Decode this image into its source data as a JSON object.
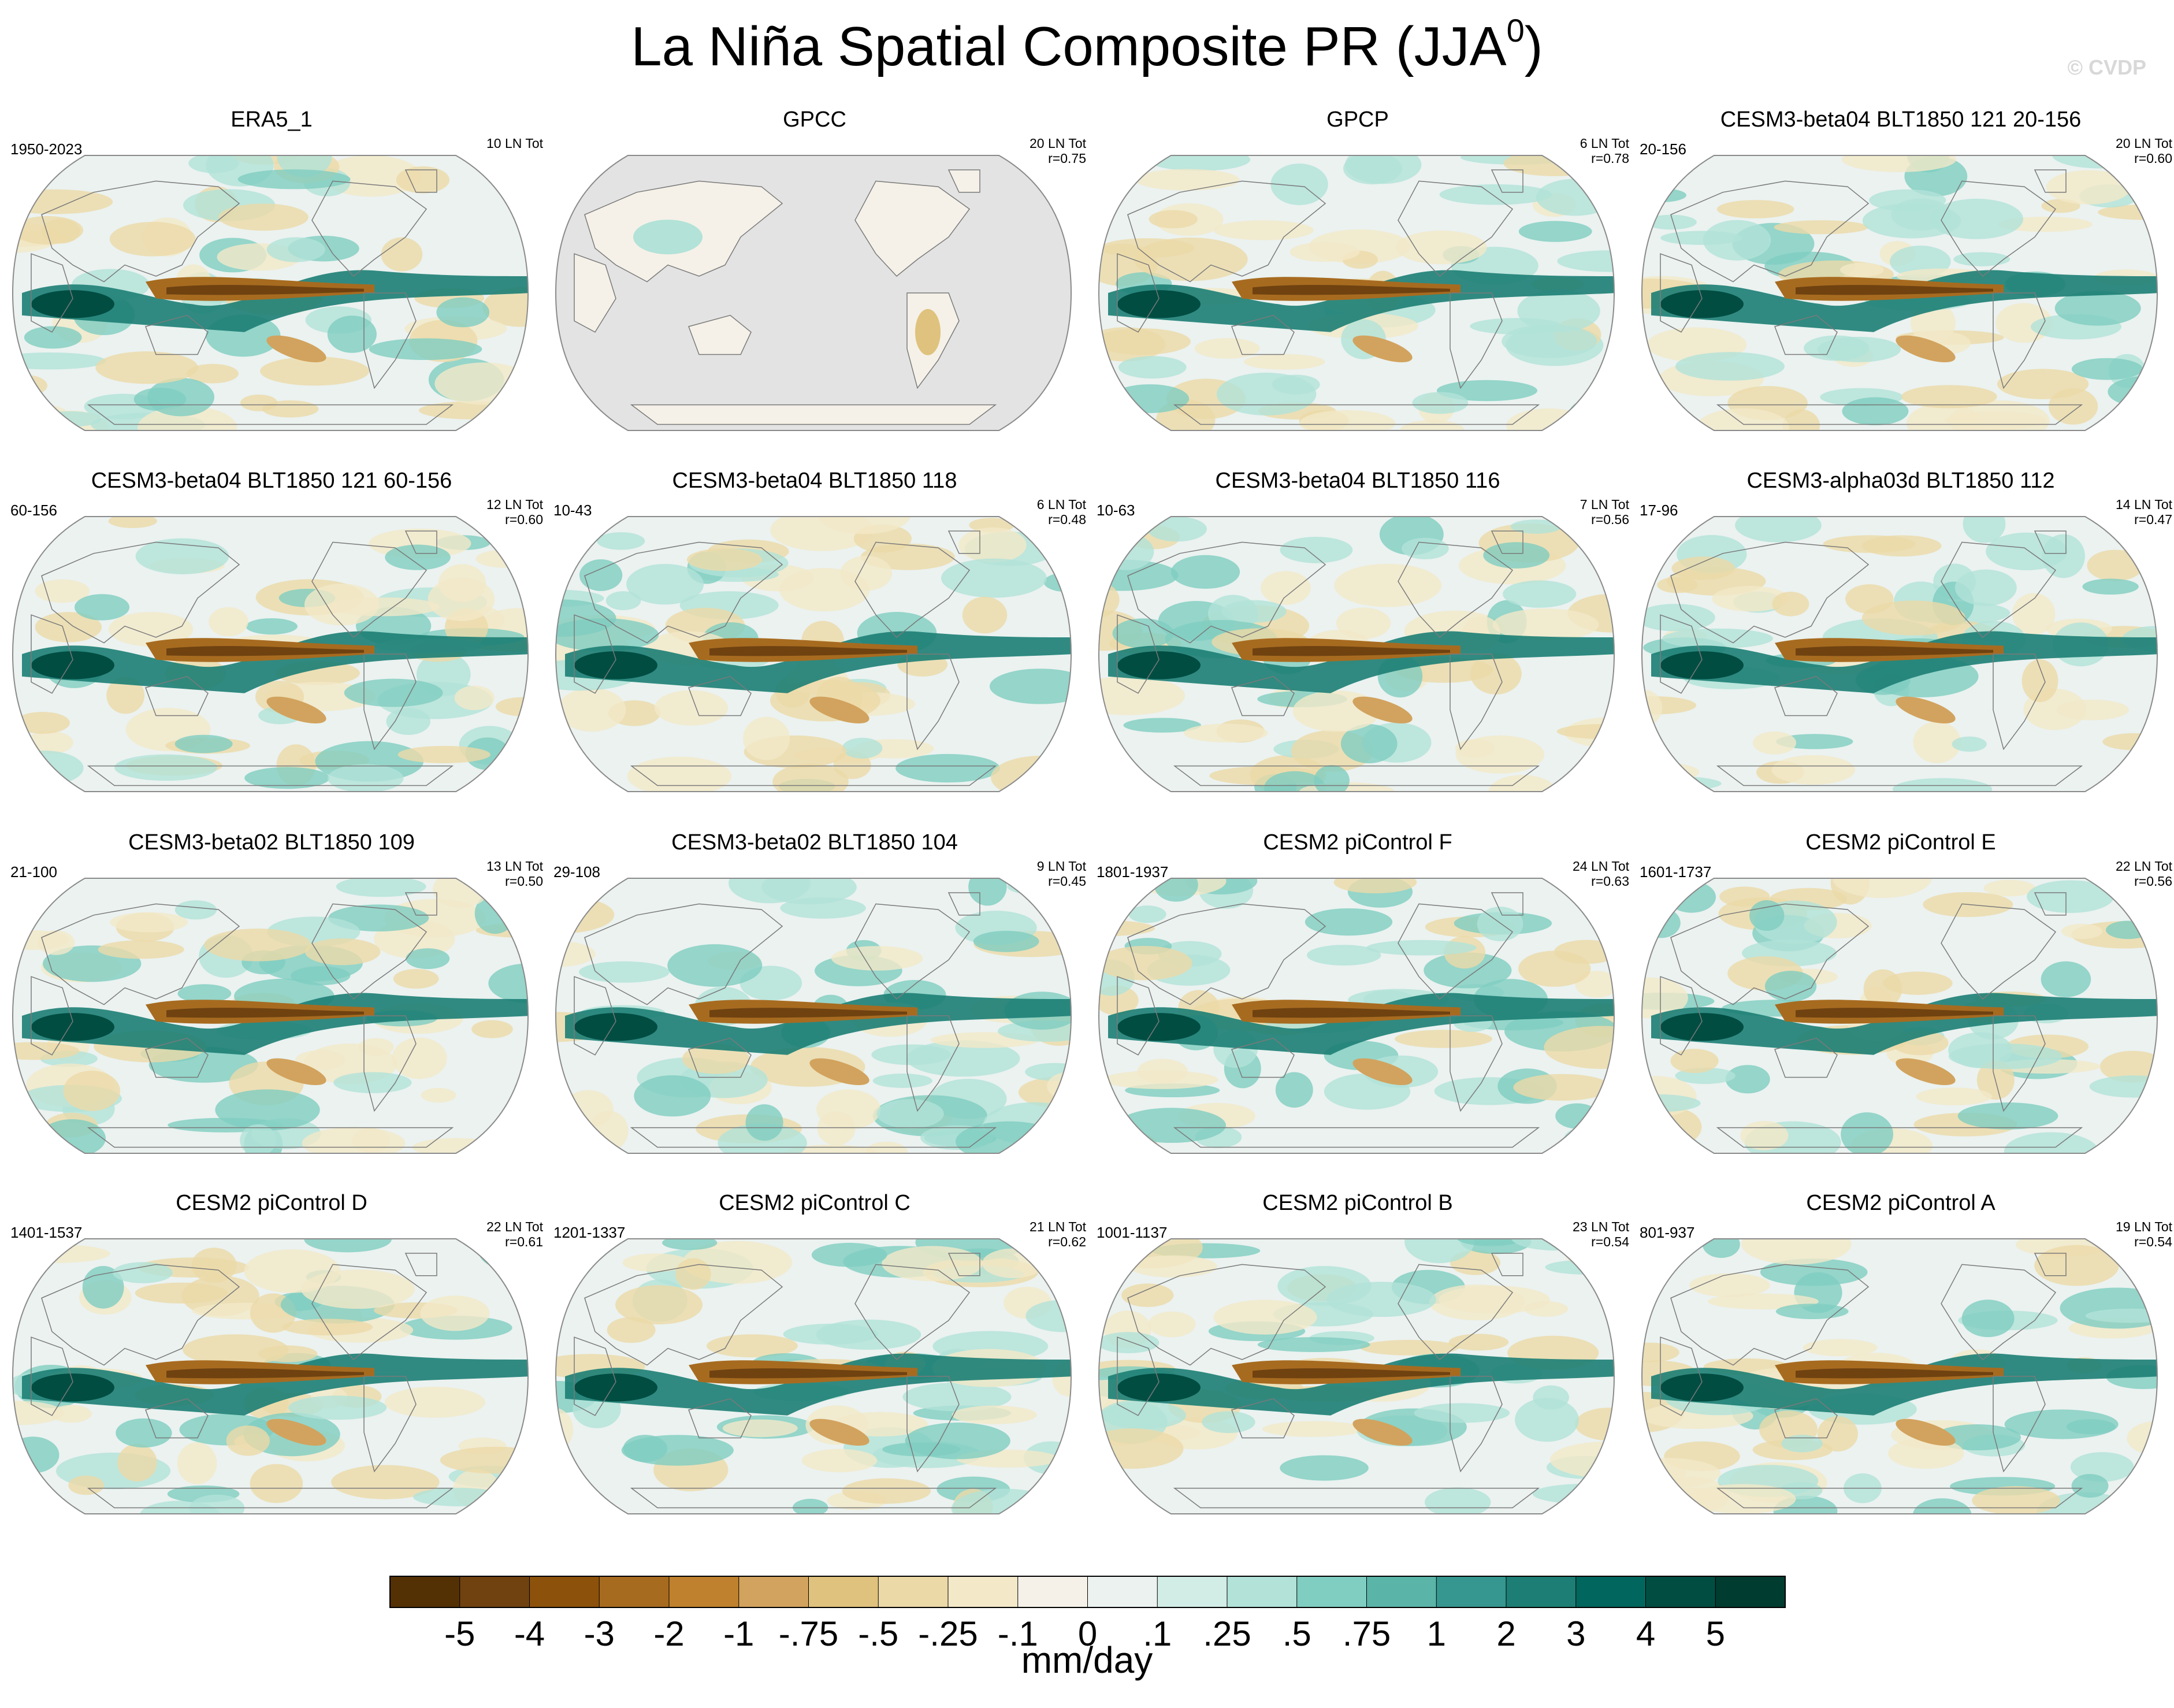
{
  "title": "La Niña Spatial Composite PR (JJA",
  "title_superscript": "0",
  "title_close": ")",
  "watermark": "© CVDP",
  "chart_data": {
    "type": "heatmap",
    "variable": "PR",
    "season": "JJA",
    "units": "mm/day",
    "projection": "global map (Robinson-like), Pacific-centered",
    "panels": [
      {
        "title": "ERA5_1",
        "years": "1950-2023",
        "count": "10 LN Tot",
        "corr": "",
        "pattern": "obs",
        "has_data_everywhere": true
      },
      {
        "title": "GPCC",
        "years": "",
        "count": "20 LN Tot",
        "corr": "r=0.75",
        "pattern": "land_only",
        "has_data_everywhere": false
      },
      {
        "title": "GPCP",
        "years": "",
        "count": "6 LN Tot",
        "corr": "r=0.78",
        "pattern": "obs",
        "has_data_everywhere": true
      },
      {
        "title": "CESM3-beta04 BLT1850 121 20-156",
        "years": "20-156",
        "count": "20 LN Tot",
        "corr": "r=0.60",
        "pattern": "model",
        "has_data_everywhere": true
      },
      {
        "title": "CESM3-beta04 BLT1850 121 60-156",
        "years": "60-156",
        "count": "12 LN Tot",
        "corr": "r=0.60",
        "pattern": "model",
        "has_data_everywhere": true
      },
      {
        "title": "CESM3-beta04 BLT1850 118",
        "years": "10-43",
        "count": "6 LN Tot",
        "corr": "r=0.48",
        "pattern": "model",
        "has_data_everywhere": true
      },
      {
        "title": "CESM3-beta04 BLT1850 116",
        "years": "10-63",
        "count": "7 LN Tot",
        "corr": "r=0.56",
        "pattern": "model",
        "has_data_everywhere": true
      },
      {
        "title": "CESM3-alpha03d BLT1850 112",
        "years": "17-96",
        "count": "14 LN Tot",
        "corr": "r=0.47",
        "pattern": "model",
        "has_data_everywhere": true
      },
      {
        "title": "CESM3-beta02 BLT1850 109",
        "years": "21-100",
        "count": "13 LN Tot",
        "corr": "r=0.50",
        "pattern": "model",
        "has_data_everywhere": true
      },
      {
        "title": "CESM3-beta02 BLT1850 104",
        "years": "29-108",
        "count": "9 LN Tot",
        "corr": "r=0.45",
        "pattern": "model",
        "has_data_everywhere": true
      },
      {
        "title": "CESM2 piControl F",
        "years": "1801-1937",
        "count": "24 LN Tot",
        "corr": "r=0.63",
        "pattern": "model",
        "has_data_everywhere": true
      },
      {
        "title": "CESM2 piControl E",
        "years": "1601-1737",
        "count": "22 LN Tot",
        "corr": "r=0.56",
        "pattern": "model",
        "has_data_everywhere": true
      },
      {
        "title": "CESM2 piControl D",
        "years": "1401-1537",
        "count": "22 LN Tot",
        "corr": "r=0.61",
        "pattern": "model",
        "has_data_everywhere": true
      },
      {
        "title": "CESM2 piControl C",
        "years": "1201-1337",
        "count": "21 LN Tot",
        "corr": "r=0.62",
        "pattern": "model",
        "has_data_everywhere": true
      },
      {
        "title": "CESM2 piControl B",
        "years": "1001-1137",
        "count": "23 LN Tot",
        "corr": "r=0.54",
        "pattern": "model",
        "has_data_everywhere": true
      },
      {
        "title": "CESM2 piControl A",
        "years": "801-937",
        "count": "19 LN Tot",
        "corr": "r=0.54",
        "pattern": "model",
        "has_data_everywhere": true
      }
    ],
    "colorbar": {
      "labels": [
        "-5",
        "-4",
        "-3",
        "-2",
        "-1",
        "-.75",
        "-.5",
        "-.25",
        "-.1",
        "0",
        ".1",
        ".25",
        ".5",
        ".75",
        "1",
        "2",
        "3",
        "4",
        "5"
      ],
      "colors": [
        "#543005",
        "#6f4210",
        "#8c510a",
        "#a76b20",
        "#bf812d",
        "#d2a35e",
        "#dfc27d",
        "#ecd9a8",
        "#f3e8c8",
        "#f5f1e8",
        "#ebf2f0",
        "#d2ece6",
        "#b2e2d8",
        "#80cdc1",
        "#5ab4a8",
        "#35978f",
        "#1c7e74",
        "#01665e",
        "#014d42",
        "#003c30"
      ],
      "units_label": "mm/day"
    }
  }
}
